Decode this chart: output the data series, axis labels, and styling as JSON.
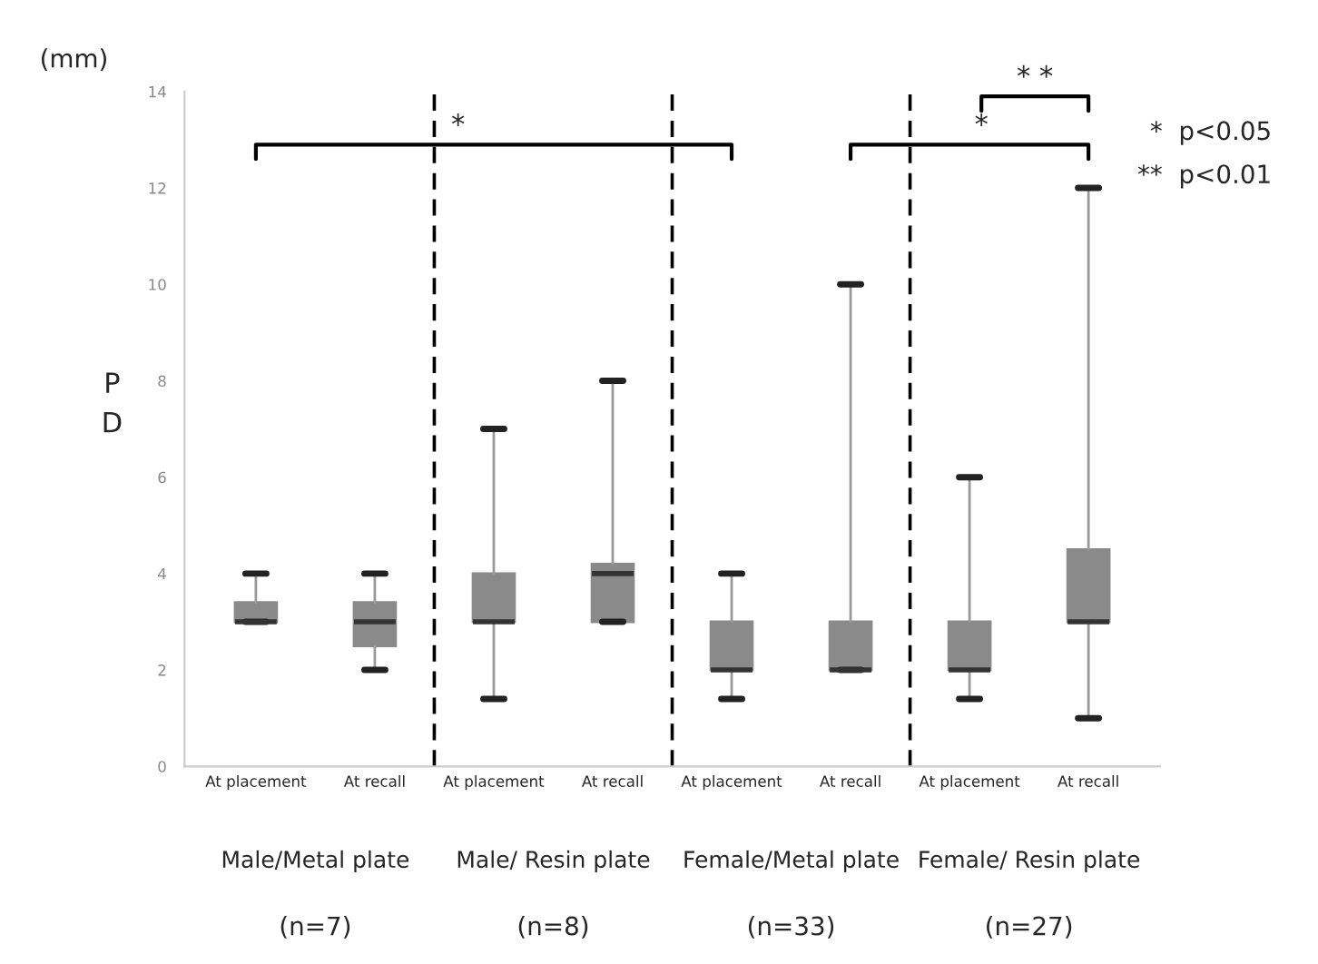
{
  "chart_data": {
    "type": "box",
    "ylabel": "PD",
    "categories": [
      "At placement",
      "At recall",
      "At placement",
      "At recall",
      "At placement",
      "At recall",
      "At placement",
      "At recall"
    ],
    "boxes": [
      {
        "low": 3,
        "q1": 3,
        "median": 3,
        "q3": 3.4,
        "high": 4
      },
      {
        "low": 2,
        "q1": 2.5,
        "median": 3,
        "q3": 3.4,
        "high": 4
      },
      {
        "low": 1.4,
        "q1": 3,
        "median": 3,
        "q3": 4,
        "high": 7
      },
      {
        "low": 3,
        "q1": 3,
        "median": 4,
        "q3": 4.2,
        "high": 8
      },
      {
        "low": 1.4,
        "q1": 2,
        "median": 2,
        "q3": 3,
        "high": 4
      },
      {
        "low": 2,
        "q1": 2,
        "median": 2,
        "q3": 3,
        "high": 10
      },
      {
        "low": 1.4,
        "q1": 2,
        "median": 2,
        "q3": 3,
        "high": 6
      },
      {
        "low": 1,
        "q1": 3,
        "median": 3,
        "q3": 4.5,
        "high": 12
      }
    ],
    "color": "#8a8a8a",
    "ylim": [
      0,
      14
    ],
    "yticks": [
      0,
      2,
      4,
      6,
      8,
      10,
      12,
      14
    ],
    "grid": false,
    "annotations": [
      "(mm)",
      "Male/Metal plate",
      "Male/ Resin plate",
      "Female/Metal plate",
      "Female/ Resin plate",
      "(n=7)",
      "(n=8)",
      "(n=33)",
      "(n=27)",
      "*",
      "*",
      "* *",
      "*  p<0.05",
      "**  p<0.01"
    ]
  }
}
